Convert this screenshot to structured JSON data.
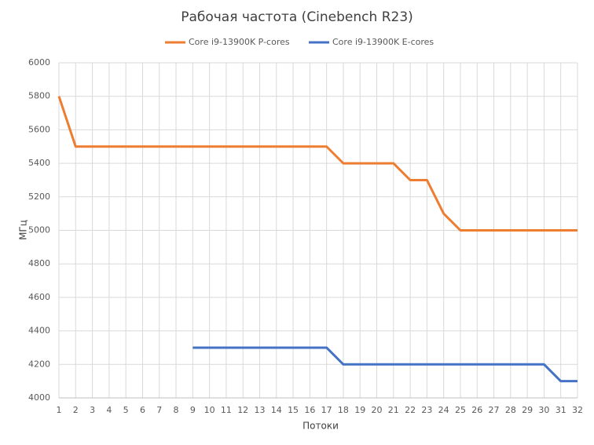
{
  "chart_data": {
    "type": "line",
    "title": "Рабочая частота (Cinebench R23)",
    "x_label": "Потоки",
    "y_label": "МГц",
    "x": [
      1,
      2,
      3,
      4,
      5,
      6,
      7,
      8,
      9,
      10,
      11,
      12,
      13,
      14,
      15,
      16,
      17,
      18,
      19,
      20,
      21,
      22,
      23,
      24,
      25,
      26,
      27,
      28,
      29,
      30,
      31,
      32
    ],
    "xlim": [
      1,
      32
    ],
    "xticks": [
      1,
      2,
      3,
      4,
      5,
      6,
      7,
      8,
      9,
      10,
      11,
      12,
      13,
      14,
      15,
      16,
      17,
      18,
      19,
      20,
      21,
      22,
      23,
      24,
      25,
      26,
      27,
      28,
      29,
      30,
      31,
      32
    ],
    "ylim": [
      4000,
      6000
    ],
    "yticks": [
      4000,
      4200,
      4400,
      4600,
      4800,
      5000,
      5200,
      5400,
      5600,
      5800,
      6000
    ],
    "grid": true,
    "legend_position": "top",
    "series": [
      {
        "name": "Core i9-13900K P-cores",
        "color": "#ed7d31",
        "values": [
          5800,
          5500,
          5500,
          5500,
          5500,
          5500,
          5500,
          5500,
          5500,
          5500,
          5500,
          5500,
          5500,
          5500,
          5500,
          5500,
          5500,
          5400,
          5400,
          5400,
          5400,
          5300,
          5300,
          5100,
          5000,
          5000,
          5000,
          5000,
          5000,
          5000,
          5000,
          5000
        ]
      },
      {
        "name": "Core i9-13900K E-cores",
        "color": "#4472c4",
        "values": [
          null,
          null,
          null,
          null,
          null,
          null,
          null,
          null,
          4300,
          4300,
          4300,
          4300,
          4300,
          4300,
          4300,
          4300,
          4300,
          4200,
          4200,
          4200,
          4200,
          4200,
          4200,
          4200,
          4200,
          4200,
          4200,
          4200,
          4200,
          4200,
          4100,
          4100
        ]
      }
    ]
  }
}
